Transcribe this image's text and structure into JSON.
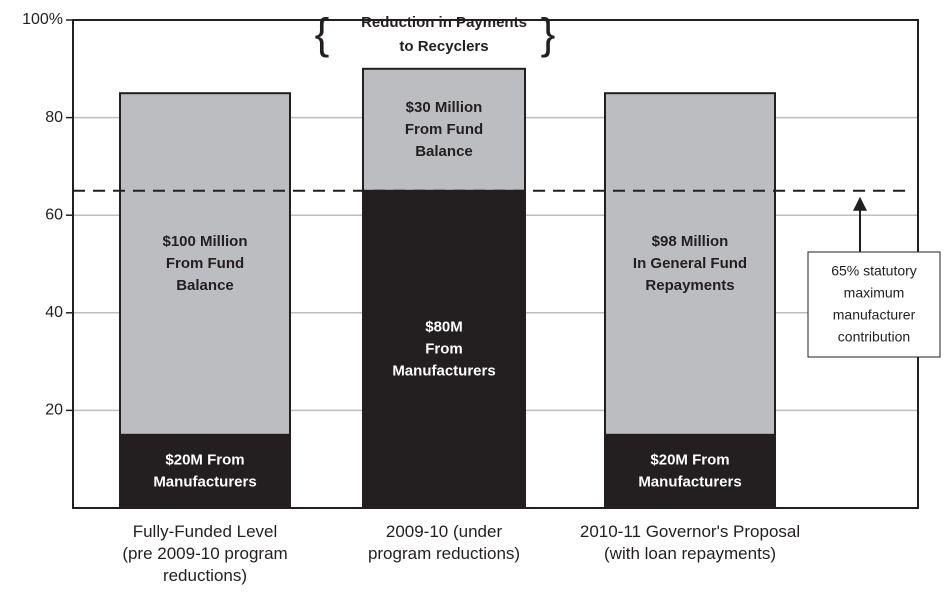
{
  "chart_data": {
    "type": "stacked_bar",
    "categories": [
      [
        "Fully-Funded Level",
        "(pre 2009-10 program",
        "reductions)"
      ],
      [
        "2009-10 (under",
        "program reductions)"
      ],
      [
        "2010-11 Governor's Proposal",
        "(with loan repayments)"
      ]
    ],
    "series": [
      {
        "color": "#231f20",
        "label_color": "#ffffff",
        "values": [
          15,
          65,
          15
        ],
        "labels": [
          [
            "$20M From",
            "Manufacturers"
          ],
          [
            "$80M",
            "From",
            "Manufacturers"
          ],
          [
            "$20M From",
            "Manufacturers"
          ]
        ]
      },
      {
        "color": "#bcbdc0",
        "label_color": "#231f20",
        "values": [
          70,
          25,
          70
        ],
        "labels": [
          [
            "$100 Million",
            "From Fund",
            "Balance"
          ],
          [
            "$30 Million",
            "From Fund",
            "Balance"
          ],
          [
            "$98 Million",
            "In General Fund",
            "Repayments"
          ]
        ]
      }
    ],
    "ylim": [
      0,
      100
    ],
    "yticks": [
      20,
      40,
      60,
      80,
      {
        "value": 100,
        "label": "100%"
      }
    ],
    "grid": true,
    "reference_line": {
      "value": 65,
      "label": [
        "65% statutory",
        "maximum",
        "manufacturer",
        "contribution"
      ]
    },
    "bar_annotation": {
      "bar": 1,
      "label": [
        "Reduction in Payments",
        "to Recyclers"
      ]
    }
  }
}
